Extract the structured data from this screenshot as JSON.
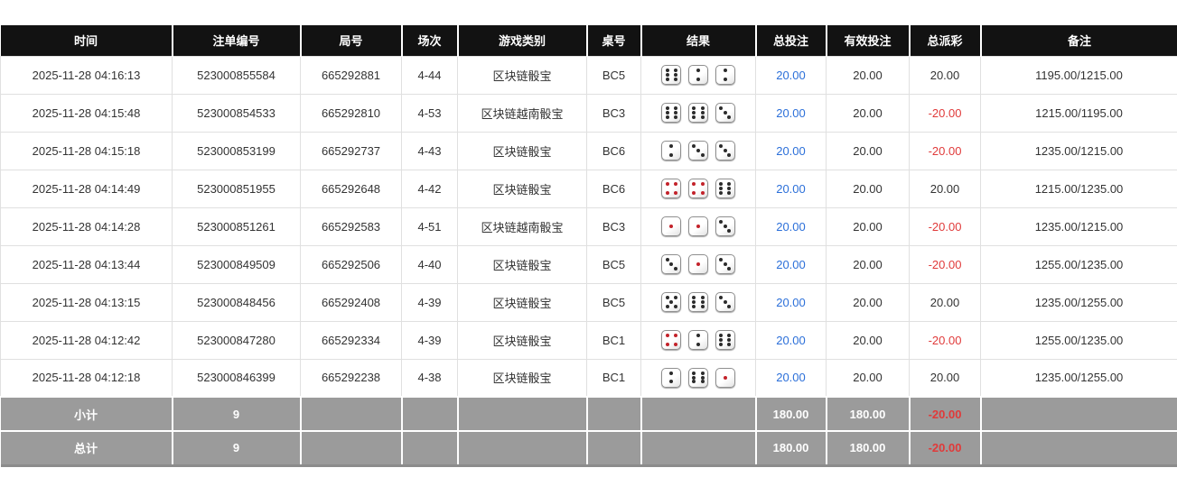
{
  "columns": {
    "time": "时间",
    "bet_no": "注单编号",
    "round_no": "局号",
    "session": "场次",
    "game_type": "游戏类别",
    "table_no": "桌号",
    "result": "结果",
    "total_bet": "总投注",
    "valid_bet": "有效投注",
    "total_payout": "总派彩",
    "remark": "备注"
  },
  "rows": [
    {
      "time": "2025-11-28 04:16:13",
      "bet_no": "523000855584",
      "round_no": "665292881",
      "session": "4-44",
      "game_type": "区块链骰宝",
      "table_no": "BC5",
      "dice": [
        6,
        2,
        2
      ],
      "total_bet": "20.00",
      "valid_bet": "20.00",
      "total_payout": "20.00",
      "remark": "1195.00/1215.00"
    },
    {
      "time": "2025-11-28 04:15:48",
      "bet_no": "523000854533",
      "round_no": "665292810",
      "session": "4-53",
      "game_type": "区块链越南骰宝",
      "table_no": "BC3",
      "dice": [
        6,
        6,
        3
      ],
      "total_bet": "20.00",
      "valid_bet": "20.00",
      "total_payout": "-20.00",
      "remark": "1215.00/1195.00"
    },
    {
      "time": "2025-11-28 04:15:18",
      "bet_no": "523000853199",
      "round_no": "665292737",
      "session": "4-43",
      "game_type": "区块链骰宝",
      "table_no": "BC6",
      "dice": [
        2,
        3,
        3
      ],
      "total_bet": "20.00",
      "valid_bet": "20.00",
      "total_payout": "-20.00",
      "remark": "1235.00/1215.00"
    },
    {
      "time": "2025-11-28 04:14:49",
      "bet_no": "523000851955",
      "round_no": "665292648",
      "session": "4-42",
      "game_type": "区块链骰宝",
      "table_no": "BC6",
      "dice": [
        4,
        4,
        6
      ],
      "total_bet": "20.00",
      "valid_bet": "20.00",
      "total_payout": "20.00",
      "remark": "1215.00/1235.00"
    },
    {
      "time": "2025-11-28 04:14:28",
      "bet_no": "523000851261",
      "round_no": "665292583",
      "session": "4-51",
      "game_type": "区块链越南骰宝",
      "table_no": "BC3",
      "dice": [
        1,
        1,
        3
      ],
      "total_bet": "20.00",
      "valid_bet": "20.00",
      "total_payout": "-20.00",
      "remark": "1235.00/1215.00"
    },
    {
      "time": "2025-11-28 04:13:44",
      "bet_no": "523000849509",
      "round_no": "665292506",
      "session": "4-40",
      "game_type": "区块链骰宝",
      "table_no": "BC5",
      "dice": [
        3,
        1,
        3
      ],
      "total_bet": "20.00",
      "valid_bet": "20.00",
      "total_payout": "-20.00",
      "remark": "1255.00/1235.00"
    },
    {
      "time": "2025-11-28 04:13:15",
      "bet_no": "523000848456",
      "round_no": "665292408",
      "session": "4-39",
      "game_type": "区块链骰宝",
      "table_no": "BC5",
      "dice": [
        5,
        6,
        3
      ],
      "total_bet": "20.00",
      "valid_bet": "20.00",
      "total_payout": "20.00",
      "remark": "1235.00/1255.00"
    },
    {
      "time": "2025-11-28 04:12:42",
      "bet_no": "523000847280",
      "round_no": "665292334",
      "session": "4-39",
      "game_type": "区块链骰宝",
      "table_no": "BC1",
      "dice": [
        4,
        2,
        6
      ],
      "total_bet": "20.00",
      "valid_bet": "20.00",
      "total_payout": "-20.00",
      "remark": "1255.00/1235.00"
    },
    {
      "time": "2025-11-28 04:12:18",
      "bet_no": "523000846399",
      "round_no": "665292238",
      "session": "4-38",
      "game_type": "区块链骰宝",
      "table_no": "BC1",
      "dice": [
        2,
        6,
        1
      ],
      "total_bet": "20.00",
      "valid_bet": "20.00",
      "total_payout": "20.00",
      "remark": "1235.00/1255.00"
    }
  ],
  "footer": {
    "subtotal": {
      "label": "小计",
      "count": "9",
      "total_bet": "180.00",
      "valid_bet": "180.00",
      "total_payout": "-20.00"
    },
    "total": {
      "label": "总计",
      "count": "9",
      "total_bet": "180.00",
      "valid_bet": "180.00",
      "total_payout": "-20.00"
    }
  },
  "colors": {
    "header_bg": "#121212",
    "link_blue": "#2b6fd9",
    "negative_red": "#e03a3a",
    "footer_bg": "#9b9b9b",
    "dice_red_pip": "#c3222a",
    "dice_black_pip": "#2b2b2b"
  }
}
